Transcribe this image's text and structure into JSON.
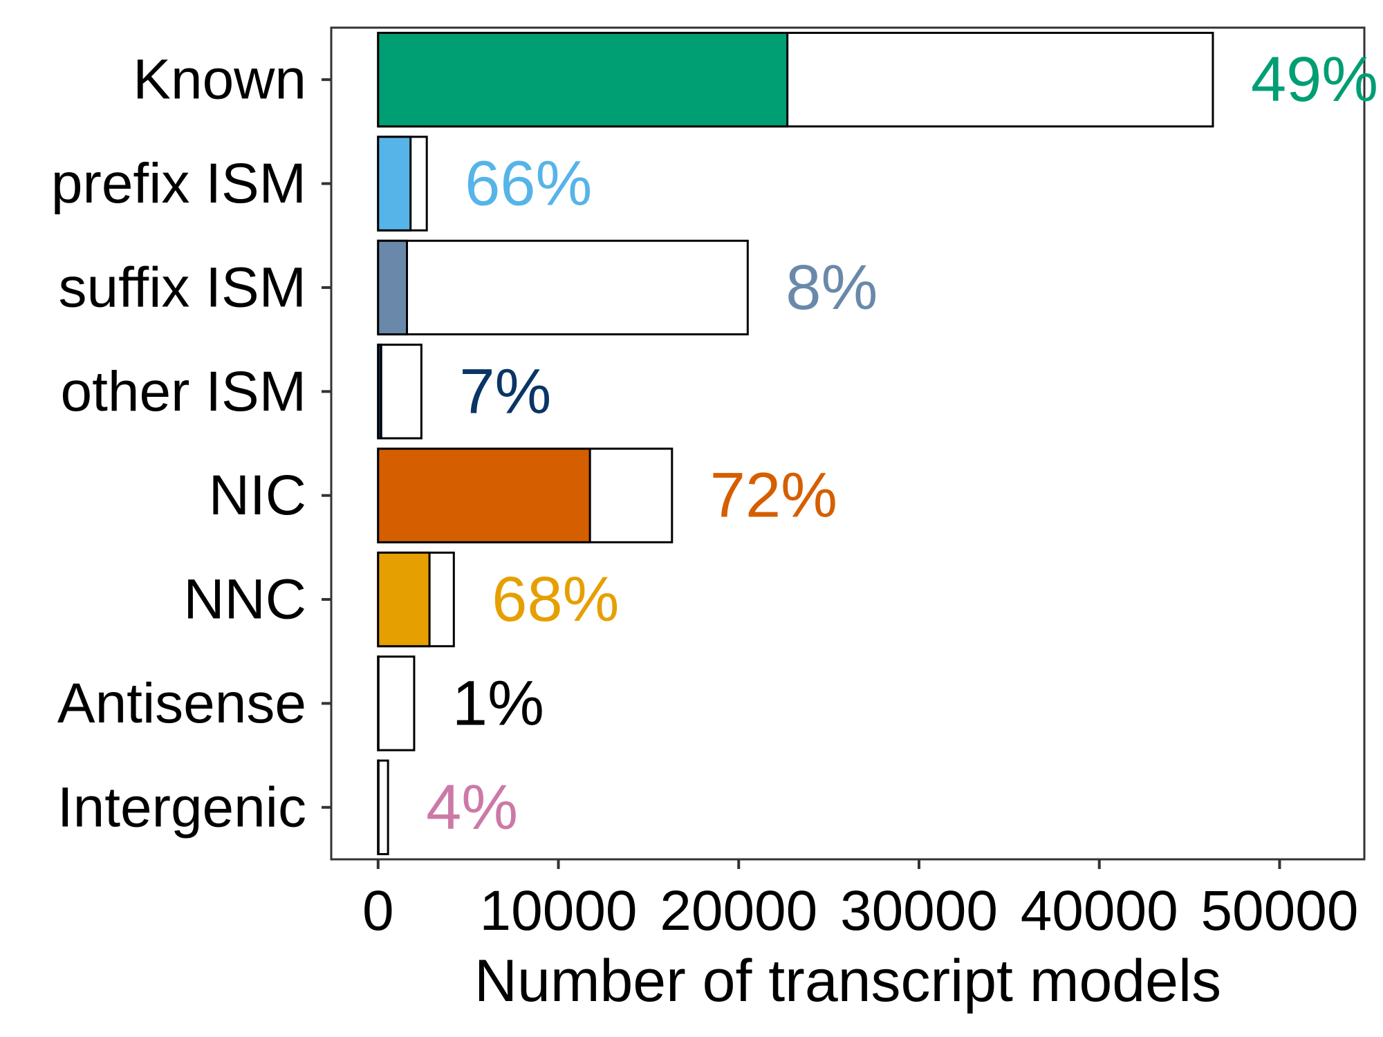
{
  "chart_data": {
    "type": "bar",
    "orientation": "horizontal",
    "categories": [
      "Known",
      "prefix ISM",
      "suffix ISM",
      "other ISM",
      "NIC",
      "NNC",
      "Antisense",
      "Intergenic"
    ],
    "series": [
      {
        "role": "total",
        "fill": "#ffffff",
        "values": [
          46300,
          2700,
          20500,
          2400,
          16300,
          4200,
          2000,
          550
        ]
      },
      {
        "role": "subset",
        "values": [
          22700,
          1800,
          1600,
          170,
          11750,
          2850,
          20,
          22
        ]
      }
    ],
    "percent_labels": [
      "49%",
      "66%",
      "8%",
      "7%",
      "72%",
      "68%",
      "1%",
      "4%"
    ],
    "category_colors": [
      "#009E73",
      "#56B4E9",
      "#6A89AA",
      "#0A3565",
      "#D55E00",
      "#E69F00",
      "#000000",
      "#CC79A7"
    ],
    "xlabel": "Number of transcript models",
    "ylabel": "",
    "title": "",
    "xlim": [
      -2600,
      54700
    ],
    "xticks": [
      0,
      10000,
      20000,
      30000,
      40000,
      50000
    ],
    "xtick_labels": [
      "0",
      "10000",
      "20000",
      "30000",
      "40000",
      "50000"
    ],
    "grid": false,
    "legend": "none"
  }
}
